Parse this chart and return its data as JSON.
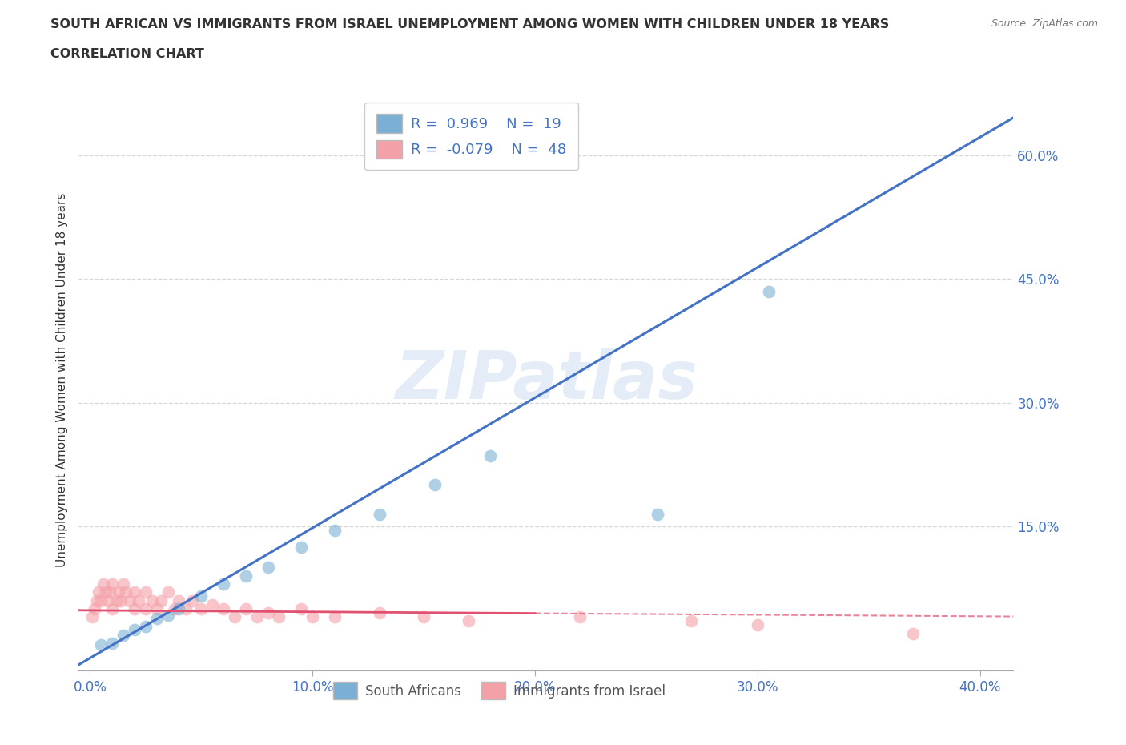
{
  "title_line1": "SOUTH AFRICAN VS IMMIGRANTS FROM ISRAEL UNEMPLOYMENT AMONG WOMEN WITH CHILDREN UNDER 18 YEARS",
  "title_line2": "CORRELATION CHART",
  "source_text": "Source: ZipAtlas.com",
  "ylabel": "Unemployment Among Women with Children Under 18 years",
  "xlim": [
    -0.005,
    0.415
  ],
  "ylim": [
    -0.025,
    0.68
  ],
  "xticks": [
    0.0,
    0.1,
    0.2,
    0.3,
    0.4
  ],
  "yticks": [
    0.15,
    0.3,
    0.45,
    0.6
  ],
  "ytick_labels": [
    "15.0%",
    "30.0%",
    "45.0%",
    "60.0%"
  ],
  "xtick_labels": [
    "0.0%",
    "10.0%",
    "20.0%",
    "30.0%",
    "40.0%"
  ],
  "blue_color": "#7BAFD4",
  "pink_color": "#F4A0A8",
  "line_blue": "#4472C4",
  "line_pink": "#E05070",
  "legend_R1": "0.969",
  "legend_N1": "19",
  "legend_R2": "-0.079",
  "legend_N2": "48",
  "watermark": "ZIPatlas",
  "watermark_color": "#C5D8EE",
  "blue_slope": 1.58,
  "blue_intercept": -0.01,
  "pink_slope": -0.018,
  "pink_intercept": 0.048,
  "blue_points_x": [
    0.005,
    0.01,
    0.015,
    0.02,
    0.025,
    0.03,
    0.035,
    0.04,
    0.05,
    0.06,
    0.07,
    0.08,
    0.095,
    0.11,
    0.13,
    0.155,
    0.18,
    0.255,
    0.305
  ],
  "blue_points_y": [
    0.006,
    0.008,
    0.018,
    0.025,
    0.028,
    0.038,
    0.042,
    0.05,
    0.065,
    0.08,
    0.09,
    0.1,
    0.125,
    0.145,
    0.165,
    0.2,
    0.235,
    0.165,
    0.435
  ],
  "pink_points_x": [
    0.001,
    0.002,
    0.003,
    0.004,
    0.005,
    0.006,
    0.007,
    0.008,
    0.009,
    0.01,
    0.01,
    0.012,
    0.013,
    0.014,
    0.015,
    0.016,
    0.018,
    0.02,
    0.02,
    0.022,
    0.025,
    0.025,
    0.028,
    0.03,
    0.032,
    0.035,
    0.038,
    0.04,
    0.043,
    0.046,
    0.05,
    0.055,
    0.06,
    0.065,
    0.07,
    0.075,
    0.08,
    0.085,
    0.095,
    0.1,
    0.11,
    0.13,
    0.15,
    0.17,
    0.22,
    0.27,
    0.3,
    0.37
  ],
  "pink_points_y": [
    0.04,
    0.05,
    0.06,
    0.07,
    0.06,
    0.08,
    0.07,
    0.06,
    0.07,
    0.05,
    0.08,
    0.06,
    0.07,
    0.06,
    0.08,
    0.07,
    0.06,
    0.07,
    0.05,
    0.06,
    0.07,
    0.05,
    0.06,
    0.05,
    0.06,
    0.07,
    0.05,
    0.06,
    0.05,
    0.06,
    0.05,
    0.055,
    0.05,
    0.04,
    0.05,
    0.04,
    0.045,
    0.04,
    0.05,
    0.04,
    0.04,
    0.045,
    0.04,
    0.035,
    0.04,
    0.035,
    0.03,
    0.02
  ]
}
